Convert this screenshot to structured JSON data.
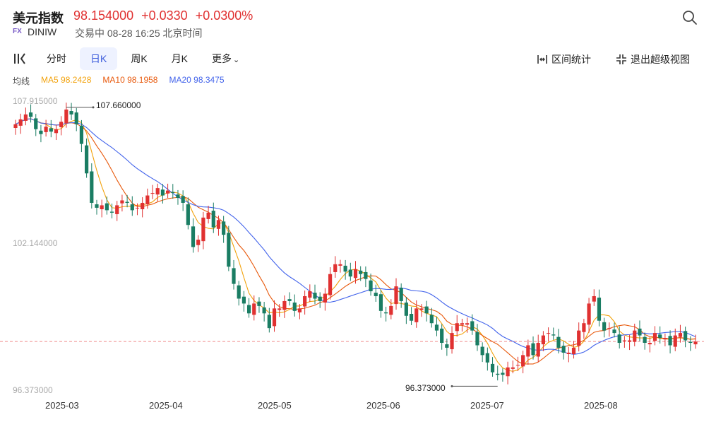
{
  "header": {
    "title": "美元指数",
    "price": "98.154000",
    "change": "+0.0330",
    "change_pct": "+0.0300%",
    "badge": "FX",
    "code": "DINIW",
    "status": "交易中 08-28 16:25 北京时间"
  },
  "tabs": [
    "分时",
    "日K",
    "周K",
    "月K",
    "更多"
  ],
  "active_tab": "日K",
  "tools": {
    "interval": "区间统计",
    "exit_fullscreen": "退出超级视图"
  },
  "ma": {
    "label": "均线",
    "ma5": "MA5 98.2428",
    "ma10": "MA10 98.1958",
    "ma20": "MA20 98.3475"
  },
  "colors": {
    "up": "#e03131",
    "down": "#1a7d63",
    "ma5": "#f2a20c",
    "ma10": "#e8590c",
    "ma20": "#4263eb",
    "accent": "#3b5bdb"
  },
  "chart_data": {
    "type": "candlestick",
    "y_ticks": [
      "107.915000",
      "102.144000",
      "96.373000"
    ],
    "ylim": [
      96.373,
      107.915
    ],
    "x_ticks": [
      "2025-03",
      "2025-04",
      "2025-05",
      "2025-06",
      "2025-07",
      "2025-08"
    ],
    "high_label": "107.660000",
    "low_label": "96.373000",
    "last_price": 98.154,
    "closes": [
      107.0,
      107.2,
      107.4,
      107.3,
      106.8,
      106.6,
      106.9,
      106.7,
      106.8,
      107.1,
      107.6,
      107.4,
      107.0,
      106.2,
      105.0,
      103.8,
      103.6,
      103.7,
      103.5,
      103.4,
      103.7,
      103.9,
      103.8,
      103.5,
      103.6,
      103.8,
      104.1,
      104.2,
      104.4,
      104.1,
      104.3,
      104.2,
      104.0,
      103.8,
      102.9,
      102.0,
      102.3,
      103.2,
      103.4,
      102.8,
      103.1,
      102.5,
      101.2,
      100.5,
      99.9,
      99.7,
      99.3,
      99.7,
      99.6,
      99.3,
      98.7,
      99.5,
      99.5,
      99.8,
      99.8,
      99.4,
      99.5,
      100.0,
      100.2,
      99.9,
      99.8,
      100.1,
      100.9,
      101.3,
      101.3,
      101.0,
      100.8,
      101.1,
      100.9,
      100.7,
      100.2,
      100.0,
      99.4,
      99.3,
      99.6,
      100.4,
      99.8,
      99.2,
      99.0,
      99.5,
      99.5,
      99.3,
      98.9,
      98.6,
      98.1,
      97.9,
      98.5,
      98.9,
      98.9,
      98.9,
      98.6,
      98.0,
      97.6,
      97.3,
      96.9,
      96.8,
      96.8,
      97.1,
      97.1,
      97.2,
      97.6,
      98.0,
      97.6,
      98.1,
      98.4,
      98.5,
      98.4,
      97.9,
      97.7,
      97.7,
      97.9,
      98.6,
      98.9,
      99.7,
      100.0,
      99.0,
      98.6,
      98.7,
      98.5,
      98.1,
      98.2,
      98.2,
      98.6,
      98.4,
      98.1,
      98.1,
      98.5,
      98.3,
      98.3,
      98.0,
      98.4,
      98.5,
      98.2,
      98.1,
      98.15
    ]
  }
}
